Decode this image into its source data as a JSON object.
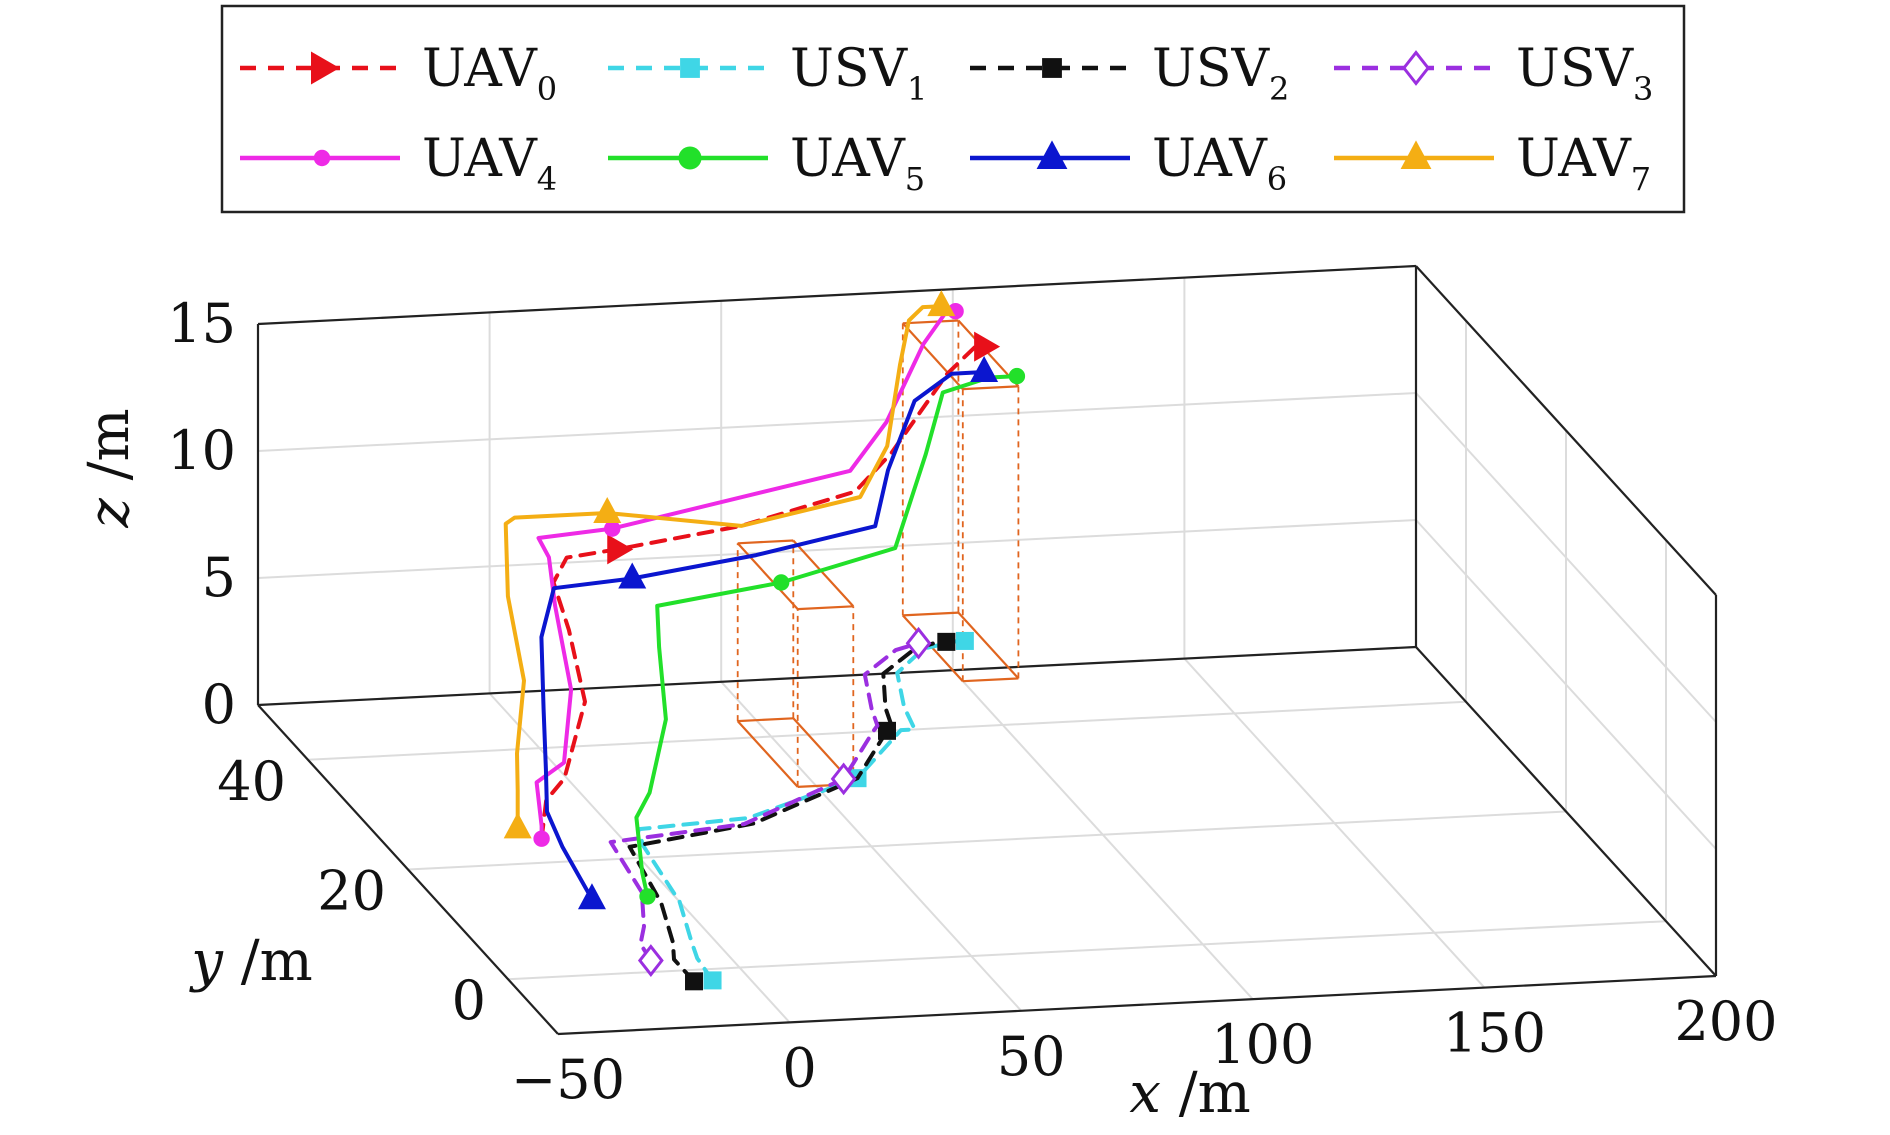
{
  "chart_data": {
    "type": "line3d",
    "title": "",
    "xlabel": "x /m",
    "ylabel": "y /m",
    "zlabel": "z /m",
    "xlim": [
      -50,
      200
    ],
    "ylim": [
      -10,
      50
    ],
    "zlim": [
      0,
      15
    ],
    "xticks": [
      "−50",
      "0",
      "50",
      "100",
      "150",
      "200"
    ],
    "yticks": [
      "0",
      "20",
      "40"
    ],
    "zticks": [
      "0",
      "5",
      "10",
      "15"
    ],
    "grid": true,
    "legend_position": "top",
    "series": [
      {
        "name": "UAV",
        "sub": "0",
        "color": "#e8101a",
        "dash": true,
        "marker": "triangle-right",
        "x": [
          -19,
          -18,
          -13,
          -1,
          2,
          3,
          8,
          20,
          50,
          80,
          90,
          102,
          108,
          110
        ],
        "y": [
          22,
          22,
          23,
          30,
          36,
          40,
          42,
          43,
          46,
          51,
          53,
          53,
          53,
          53
        ],
        "z": [
          0.5,
          2,
          2.6,
          4,
          5.5,
          6.5,
          7,
          7,
          7,
          7,
          8,
          11,
          12,
          12
        ]
      },
      {
        "name": "USV",
        "sub": "1",
        "color": "#3fd6e6",
        "dash": true,
        "marker": "square",
        "x": [
          -8,
          -7,
          -5,
          0,
          3,
          5,
          30,
          60,
          78,
          81,
          83,
          88,
          98,
          106,
          108
        ],
        "y": [
          -2,
          2,
          5,
          12,
          22,
          25,
          26,
          32,
          40,
          40,
          44,
          50,
          54,
          55,
          55
        ],
        "z": [
          0,
          0,
          0,
          0,
          0,
          0,
          0,
          0,
          0,
          0,
          0,
          0,
          0,
          0,
          0
        ]
      },
      {
        "name": "USV",
        "sub": "2",
        "color": "#111111",
        "dash": true,
        "marker": "square",
        "x": [
          -12,
          -12,
          -9,
          -4,
          0,
          30,
          60,
          75,
          77,
          79,
          85,
          96,
          102,
          104
        ],
        "y": [
          -2,
          2,
          5,
          12,
          22,
          25,
          32,
          40,
          41,
          44,
          50,
          54,
          55,
          55
        ],
        "z": [
          0,
          0,
          0,
          0,
          0,
          0,
          0,
          0,
          0,
          0,
          0,
          0,
          0,
          0
        ]
      },
      {
        "name": "USV",
        "sub": "3",
        "color": "#9b2fe0",
        "dash": true,
        "marker": "diamond",
        "x": [
          -17,
          -16,
          -12,
          -6,
          -3,
          28,
          57,
          72,
          74,
          76,
          81,
          92,
          98
        ],
        "y": [
          2,
          5,
          8,
          14,
          23,
          25,
          32,
          40,
          41,
          44,
          50,
          54,
          55
        ],
        "z": [
          0,
          0,
          0,
          0,
          0,
          0,
          0,
          0,
          0,
          0,
          0,
          0,
          0
        ]
      },
      {
        "name": "UAV",
        "sub": "4",
        "color": "#ee2ae6",
        "dash": false,
        "marker": "circle",
        "x": [
          -19,
          -19,
          -19,
          -12,
          -4,
          -1,
          2,
          3,
          20,
          50,
          80,
          90,
          98,
          102,
          104,
          106
        ],
        "y": [
          22,
          22,
          23,
          24,
          30,
          36,
          40,
          43,
          44,
          48,
          52,
          54,
          54,
          54,
          55,
          55
        ],
        "z": [
          0.5,
          1,
          2.5,
          3,
          4.5,
          6.5,
          7.5,
          7.6,
          7.6,
          7.6,
          7.6,
          9,
          12,
          13,
          13,
          13
        ]
      },
      {
        "name": "UAV",
        "sub": "5",
        "color": "#22e02a",
        "dash": false,
        "marker": "circle",
        "x": [
          -8,
          -7,
          -5,
          0,
          10,
          15,
          20,
          50,
          80,
          92,
          100,
          110,
          114,
          116
        ],
        "y": [
          11,
          13,
          16,
          18,
          24,
          30,
          35,
          38,
          43,
          48,
          52,
          52,
          52,
          52
        ],
        "z": [
          0.5,
          1,
          2.5,
          3,
          4.5,
          6,
          6.5,
          6.5,
          6.5,
          9,
          10.5,
          11,
          11,
          11
        ]
      },
      {
        "name": "UAV",
        "sub": "6",
        "color": "#0b16cf",
        "dash": false,
        "marker": "triangle-up",
        "x": [
          -20,
          -21,
          -20,
          -17,
          -11,
          -5,
          2,
          20,
          50,
          80,
          86,
          95,
          103,
          108,
          110
        ],
        "y": [
          11,
          16,
          20,
          23,
          29,
          35,
          39,
          40,
          43,
          47,
          50,
          53,
          53,
          53,
          53
        ],
        "z": [
          0.5,
          1.5,
          2,
          3,
          4,
          5.5,
          6.5,
          6.5,
          6.5,
          6.5,
          8,
          10,
          11,
          11,
          11
        ]
      },
      {
        "name": "UAV",
        "sub": "7",
        "color": "#f4ae14",
        "dash": false,
        "marker": "triangle-up",
        "x": [
          -22,
          -22,
          -20,
          -12,
          -9,
          -3,
          0,
          20,
          50,
          80,
          88,
          94,
          97,
          100,
          104
        ],
        "y": [
          24,
          24,
          26,
          32,
          38,
          44,
          45,
          45,
          46,
          50,
          52,
          55,
          56,
          56,
          56
        ],
        "z": [
          0.5,
          2,
          3,
          4.5,
          6.5,
          8,
          8,
          8,
          7,
          7,
          8.5,
          11,
          12.5,
          13,
          13
        ]
      }
    ]
  }
}
